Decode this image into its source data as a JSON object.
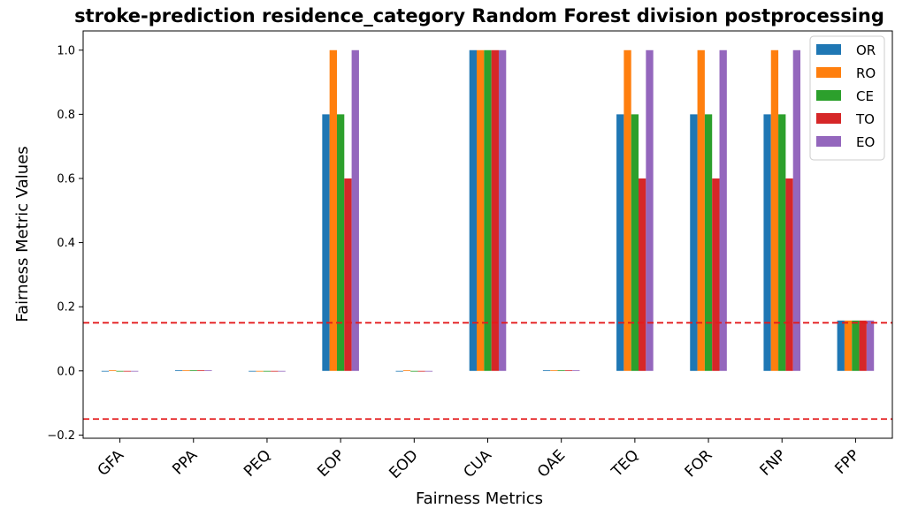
{
  "chart_data": {
    "type": "bar",
    "title": "stroke-prediction residence_category Random Forest division postprocessing",
    "xlabel": "Fairness Metrics",
    "ylabel": "Fairness Metric Values",
    "ylim": [
      -0.21,
      1.06
    ],
    "yticks": [
      -0.2,
      0.0,
      0.2,
      0.4,
      0.6,
      0.8,
      1.0
    ],
    "ytick_labels": [
      "−0.2",
      "0.0",
      "0.2",
      "0.4",
      "0.6",
      "0.8",
      "1.0"
    ],
    "categories": [
      "GFA",
      "PPA",
      "PEQ",
      "EOP",
      "EOD",
      "CUA",
      "OAE",
      "TEQ",
      "FOR",
      "FNP",
      "FPP"
    ],
    "series": [
      {
        "name": "OR",
        "color": "#1f77b4",
        "values": [
          0,
          0.002,
          0,
          0.8,
          0,
          1.0,
          0.002,
          0.8,
          0.8,
          0.8,
          0.157
        ]
      },
      {
        "name": "RO",
        "color": "#ff7f0e",
        "values": [
          0.002,
          0.002,
          0,
          1.0,
          0.002,
          1.0,
          0.002,
          1.0,
          1.0,
          1.0,
          0.157
        ]
      },
      {
        "name": "CE",
        "color": "#2ca02c",
        "values": [
          0,
          0.002,
          0,
          0.8,
          0,
          1.0,
          0.002,
          0.8,
          0.8,
          0.8,
          0.157
        ]
      },
      {
        "name": "TO",
        "color": "#d62728",
        "values": [
          0,
          0.002,
          0,
          0.6,
          0,
          1.0,
          0.002,
          0.6,
          0.6,
          0.6,
          0.157
        ]
      },
      {
        "name": "EO",
        "color": "#9467bd",
        "values": [
          0,
          0.002,
          0,
          1.0,
          0,
          1.0,
          0.002,
          1.0,
          1.0,
          1.0,
          0.157
        ]
      }
    ],
    "reference_lines": [
      0.15,
      -0.15
    ],
    "reference_line_color": "#e31a1c",
    "legend_position": "top-right",
    "grid": false
  }
}
